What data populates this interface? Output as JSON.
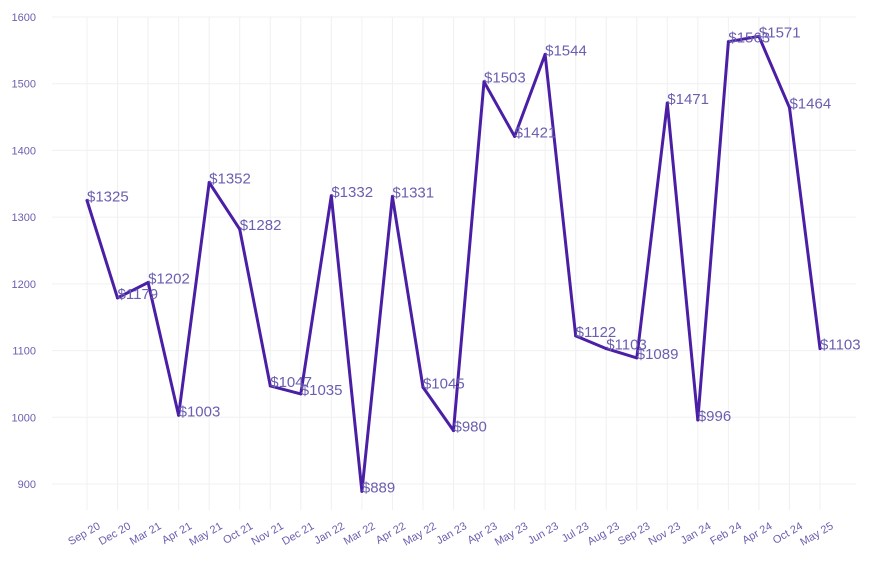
{
  "chart_data": {
    "type": "line",
    "title": "",
    "xlabel": "",
    "ylabel": "",
    "ylim": [
      850,
      1600
    ],
    "yticks": [
      900,
      1000,
      1100,
      1200,
      1300,
      1400,
      1500,
      1600
    ],
    "grid": true,
    "legend": "none",
    "series_color": "#4b1fa5",
    "text_color": "#6a5fb0",
    "categories": [
      "Sep 20",
      "Dec 20",
      "Mar 21",
      "Apr 21",
      "May 21",
      "Oct 21",
      "Nov 21",
      "Dec 21",
      "Jan 22",
      "Mar 22",
      "Apr 22",
      "May 22",
      "Jan 23",
      "Apr 23",
      "May 23",
      "Jun 23",
      "Jul 23",
      "Aug 23",
      "Sep 23",
      "Nov 23",
      "Jan 24",
      "Feb 24",
      "Apr 24",
      "Oct 24",
      "May 25"
    ],
    "values": [
      1325,
      1179,
      1202,
      1003,
      1352,
      1282,
      1047,
      1035,
      1332,
      889,
      1331,
      1045,
      980,
      1503,
      1421,
      1544,
      1122,
      1103,
      1089,
      1471,
      996,
      1563,
      1571,
      1464,
      1103
    ],
    "data_labels": [
      "$1325",
      "$1179",
      "$1202",
      "$1003",
      "$1352",
      "$1282",
      "$1047",
      "$1035",
      "$1332",
      "$889",
      "$1331",
      "$1045",
      "$980",
      "$1503",
      "$1421",
      "$1544",
      "$1122",
      "$1103",
      "$1089",
      "$1471",
      "$996",
      "$1563",
      "$1571",
      "$1464",
      "$1103"
    ]
  }
}
